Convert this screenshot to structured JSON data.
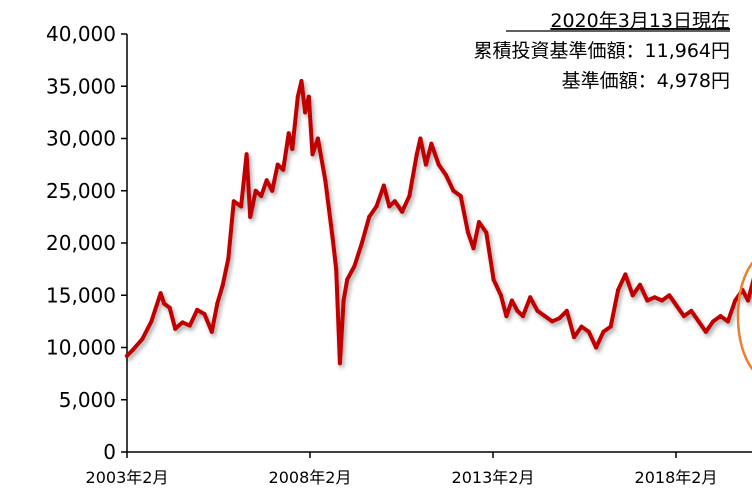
{
  "chart_data": {
    "type": "line",
    "annotation": {
      "date_line": "2020年3月13日現在",
      "cumulative_line": "累積投資基準価額：11,964円",
      "nav_line": "基準価額：4,978円"
    },
    "ylim": [
      0,
      40000
    ],
    "y_ticks": [
      "0",
      "5,000",
      "10,000",
      "15,000",
      "20,000",
      "25,000",
      "30,000",
      "35,000",
      "40,000"
    ],
    "y_tick_values": [
      0,
      5000,
      10000,
      15000,
      20000,
      25000,
      30000,
      35000,
      40000
    ],
    "x_ticks": [
      "2003年2月",
      "2008年2月",
      "2013年2月",
      "2018年2月"
    ],
    "x_tick_values": [
      2003.083,
      2008.083,
      2013.083,
      2018.083
    ],
    "xlim": [
      2003.083,
      2020.2
    ],
    "series": [
      {
        "color": "#c00000",
        "x": [
          2003.08,
          2003.25,
          2003.5,
          2003.75,
          2004.0,
          2004.1,
          2004.25,
          2004.4,
          2004.6,
          2004.8,
          2005.0,
          2005.2,
          2005.4,
          2005.55,
          2005.7,
          2005.85,
          2006.0,
          2006.2,
          2006.35,
          2006.45,
          2006.6,
          2006.75,
          2006.9,
          2007.05,
          2007.2,
          2007.35,
          2007.5,
          2007.6,
          2007.75,
          2007.85,
          2007.95,
          2008.05,
          2008.15,
          2008.3,
          2008.5,
          2008.7,
          2008.8,
          2008.9,
          2009.0,
          2009.1,
          2009.3,
          2009.5,
          2009.7,
          2009.9,
          2010.1,
          2010.25,
          2010.4,
          2010.6,
          2010.8,
          2011.0,
          2011.1,
          2011.25,
          2011.4,
          2011.6,
          2011.8,
          2012.0,
          2012.2,
          2012.4,
          2012.55,
          2012.7,
          2012.9,
          2013.1,
          2013.3,
          2013.45,
          2013.6,
          2013.75,
          2013.9,
          2014.1,
          2014.3,
          2014.5,
          2014.7,
          2014.9,
          2015.1,
          2015.3,
          2015.5,
          2015.7,
          2015.9,
          2016.1,
          2016.3,
          2016.5,
          2016.7,
          2016.9,
          2017.1,
          2017.3,
          2017.5,
          2017.7,
          2017.9,
          2018.1,
          2018.3,
          2018.5,
          2018.7,
          2018.9,
          2019.1,
          2019.3,
          2019.5,
          2019.7,
          2019.9,
          2020.05,
          2020.2
        ],
        "y": [
          9200,
          9800,
          10800,
          12500,
          15200,
          14200,
          13800,
          11800,
          12400,
          12100,
          13600,
          13200,
          11500,
          14200,
          16000,
          18500,
          24000,
          23500,
          28500,
          22500,
          25000,
          24500,
          26000,
          25000,
          27500,
          27000,
          30500,
          29000,
          34000,
          35500,
          32500,
          34000,
          28500,
          30000,
          26000,
          20500,
          17500,
          8500,
          14500,
          16500,
          17800,
          20000,
          22500,
          23500,
          25500,
          23500,
          24000,
          23000,
          24500,
          28500,
          30000,
          27500,
          29500,
          27500,
          26500,
          25000,
          24500,
          21000,
          19500,
          22000,
          21000,
          16500,
          15000,
          13000,
          14500,
          13500,
          13000,
          14800,
          13500,
          13000,
          12500,
          12800,
          13500,
          11000,
          12000,
          11500,
          10000,
          11500,
          12000,
          15500,
          17000,
          15000,
          16000,
          14500,
          14800,
          14500,
          15000,
          14000,
          13000,
          13500,
          12500,
          11500,
          12500,
          13000,
          12500,
          14500,
          15500,
          14500,
          16500
        ]
      }
    ],
    "highlight": {
      "type": "ellipse",
      "color": "#ed7d31"
    }
  }
}
